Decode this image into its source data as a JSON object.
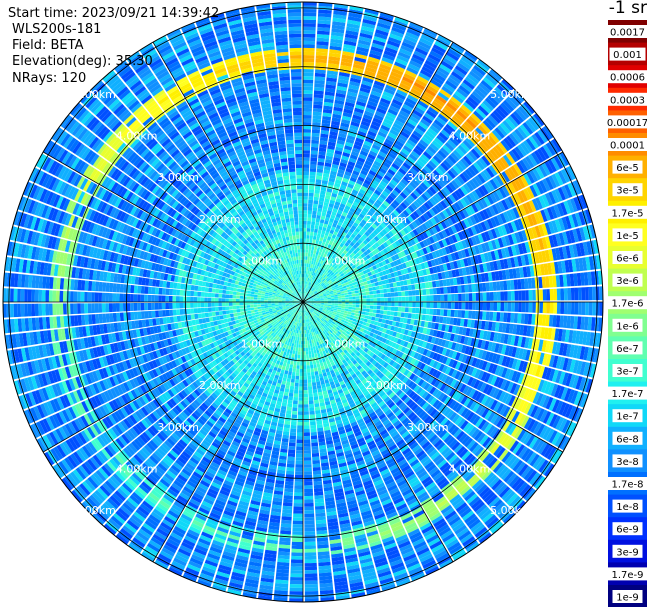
{
  "header": {
    "start_time": "Start time: 2023/09/21 14:39:42",
    "instrument": "WLS200s-181",
    "field": "Field: BETA",
    "elevation": "Elevation(deg): 35.30",
    "nrays": "NRays: 120",
    "unit_label": "-1 sr"
  },
  "chart_data": {
    "type": "heatmap",
    "projection": "polar-ppi",
    "n_rays": 120,
    "range_rings_km": [
      1,
      2,
      3,
      4,
      5
    ],
    "ring_labels": [
      "1.00km",
      "2.00km",
      "3.00km",
      "4.00km",
      "5.00km"
    ],
    "max_range_km": 5.1,
    "spoke_count": 12,
    "field": "BETA",
    "colorbar": {
      "ticks": [
        "0.0017",
        "0.001",
        "0.0006",
        "0.0003",
        "0.00017",
        "0.0001",
        "6e-5",
        "3e-5",
        "1.7e-5",
        "1e-5",
        "6e-6",
        "3e-6",
        "1.7e-6",
        "1e-6",
        "6e-7",
        "3e-7",
        "1.7e-7",
        "1e-7",
        "6e-8",
        "3e-8",
        "1.7e-8",
        "1e-8",
        "6e-9",
        "3e-9",
        "1.7e-9",
        "1e-9"
      ],
      "colors": [
        "#800000",
        "#b40000",
        "#e00000",
        "#ff2a00",
        "#ff6000",
        "#ff8c00",
        "#ffb000",
        "#ffd400",
        "#fff000",
        "#ffff20",
        "#e8ff30",
        "#c0ff50",
        "#a0ff70",
        "#80ff90",
        "#60ffb0",
        "#40ffd0",
        "#20f0f0",
        "#10d8f8",
        "#10b0ff",
        "#1090ff",
        "#0070ff",
        "#0050ff",
        "#0030ff",
        "#0010e0",
        "#0000b0",
        "#000080"
      ]
    },
    "features": [
      {
        "name": "aerosol-ring",
        "range_km": [
          4.0,
          4.3
        ],
        "level_index": [
          6,
          10
        ]
      },
      {
        "name": "near-range-haze",
        "range_km": [
          0,
          2.2
        ],
        "level_index": [
          14,
          18
        ]
      }
    ]
  }
}
